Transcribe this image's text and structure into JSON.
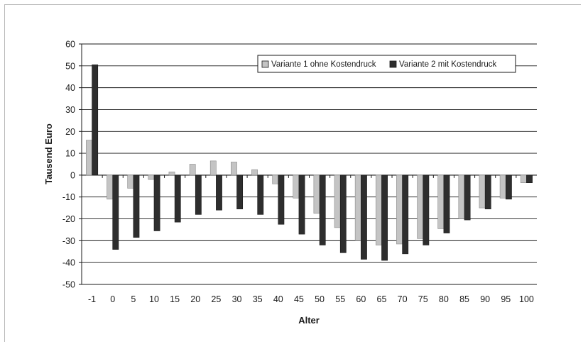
{
  "chart_data": {
    "type": "bar",
    "title": "",
    "xlabel": "Alter",
    "ylabel": "Tausend Euro",
    "ylim": [
      -50,
      60
    ],
    "yticks": [
      60,
      50,
      40,
      30,
      20,
      10,
      0,
      -10,
      -20,
      -30,
      -40,
      -50
    ],
    "grid": true,
    "legend_position": "top-right",
    "categories": [
      "-1",
      "0",
      "5",
      "10",
      "15",
      "20",
      "25",
      "30",
      "35",
      "40",
      "45",
      "50",
      "55",
      "60",
      "65",
      "70",
      "75",
      "80",
      "85",
      "90",
      "95",
      "100"
    ],
    "series": [
      {
        "name": "Variante 1 ohne Kostendruck",
        "color": "#c4c4c4",
        "values": [
          16,
          -11,
          -6,
          -2,
          1.5,
          5,
          6.5,
          6,
          2.5,
          -4,
          -10.5,
          -17.5,
          -24,
          -30,
          -32,
          -31.5,
          -29,
          -24.5,
          -20,
          -15,
          -10.5,
          -3.5
        ]
      },
      {
        "name": "Variante 2 mit Kostendruck",
        "color": "#2e2e2e",
        "values": [
          50.5,
          -34,
          -28.5,
          -25.5,
          -21.5,
          -18,
          -16,
          -15.5,
          -18,
          -22.5,
          -27,
          -32,
          -35.5,
          -38.5,
          -39,
          -36,
          -32,
          -26.5,
          -20.5,
          -15.5,
          -11,
          -3.5
        ]
      }
    ]
  }
}
